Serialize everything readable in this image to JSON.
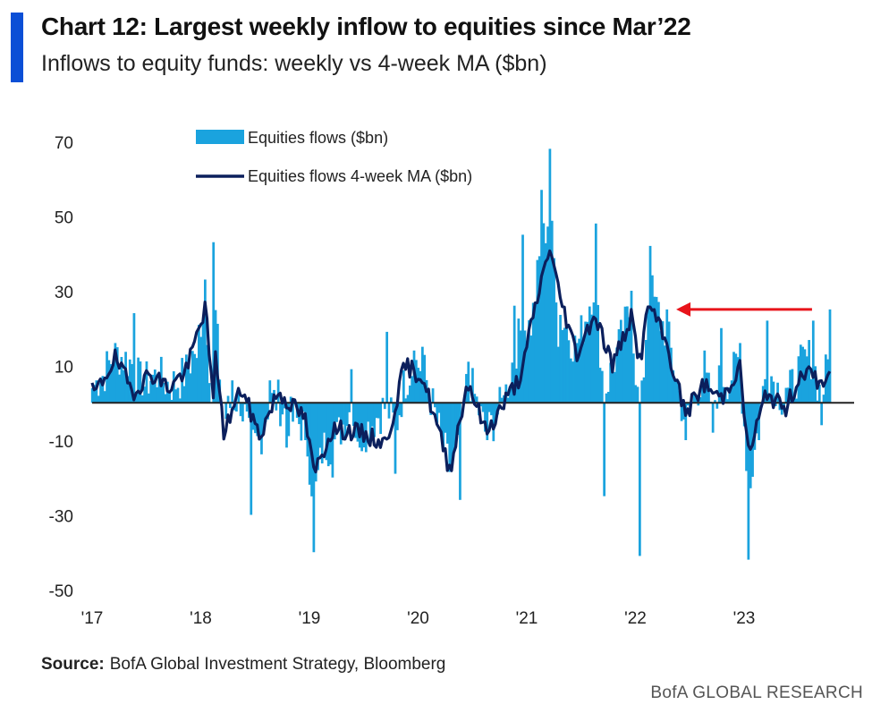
{
  "header": {
    "title": "Chart 12: Largest weekly inflow to equities since Mar’22",
    "subtitle": "Inflows to equity funds: weekly vs 4-week MA ($bn)"
  },
  "footer": {
    "source_label": "Source:",
    "source_text": "BofA Global Investment Strategy, Bloomberg",
    "brand": "BofA GLOBAL RESEARCH"
  },
  "colors": {
    "accent": "#0b4fd6",
    "bars": "#1aa3de",
    "ma_line": "#0b1f5c",
    "arrow": "#e8141b",
    "zero_line": "#222222"
  },
  "chart_data": {
    "type": "bar",
    "title": "",
    "xlabel": "",
    "ylabel": "",
    "ylim": [
      -50,
      75
    ],
    "yticks": [
      70,
      50,
      30,
      10,
      -10,
      -30,
      -50
    ],
    "xticks": [
      "'17",
      "'18",
      "'19",
      "'20",
      "'21",
      "'22",
      "'23"
    ],
    "legend_position": "top-left",
    "annotations": [
      {
        "type": "arrow",
        "direction": "left",
        "from": [
          "2023-08",
          25
        ],
        "to": [
          "2022-05",
          25
        ]
      }
    ],
    "series": [
      {
        "name": "Equities flows ($bn)",
        "type": "bar",
        "frequency": "weekly",
        "start": "2017-01",
        "anchors": [
          [
            "2017-01",
            6
          ],
          [
            "2017-03",
            16
          ],
          [
            "2017-05",
            24
          ],
          [
            "2017-06",
            2
          ],
          [
            "2017-08",
            8
          ],
          [
            "2017-10",
            4
          ],
          [
            "2017-12",
            12
          ],
          [
            "2018-01",
            33
          ],
          [
            "2018-02",
            -31
          ],
          [
            "2018-02",
            43
          ],
          [
            "2018-03",
            0
          ],
          [
            "2018-04",
            6
          ],
          [
            "2018-05",
            -5
          ],
          [
            "2018-06",
            -30
          ],
          [
            "2018-08",
            6
          ],
          [
            "2018-10",
            -12
          ],
          [
            "2018-12",
            -10
          ],
          [
            "2019-01",
            -40
          ],
          [
            "2019-02",
            -8
          ],
          [
            "2019-03",
            -20
          ],
          [
            "2019-05",
            9
          ],
          [
            "2019-06",
            -12
          ],
          [
            "2019-09",
            19
          ],
          [
            "2019-10",
            -19
          ],
          [
            "2019-12",
            14
          ],
          [
            "2020-01",
            15
          ],
          [
            "2020-03",
            -9
          ],
          [
            "2020-05",
            -26
          ],
          [
            "2020-06",
            11
          ],
          [
            "2020-08",
            -10
          ],
          [
            "2020-10",
            2
          ],
          [
            "2020-11",
            26
          ],
          [
            "2020-12",
            45
          ],
          [
            "2021-01",
            18
          ],
          [
            "2021-02",
            57
          ],
          [
            "2021-03",
            68
          ],
          [
            "2021-04",
            15
          ],
          [
            "2021-06",
            16
          ],
          [
            "2021-08",
            48
          ],
          [
            "2021-09",
            -25
          ],
          [
            "2021-10",
            10
          ],
          [
            "2021-12",
            30
          ],
          [
            "2022-01",
            -41
          ],
          [
            "2022-02",
            42
          ],
          [
            "2022-03",
            27
          ],
          [
            "2022-04",
            25
          ],
          [
            "2022-06",
            -10
          ],
          [
            "2022-08",
            14
          ],
          [
            "2022-09",
            -8
          ],
          [
            "2022-10",
            20
          ],
          [
            "2022-11",
            6
          ],
          [
            "2022-12",
            16
          ],
          [
            "2023-01",
            -42
          ],
          [
            "2023-02",
            -10
          ],
          [
            "2023-03",
            22
          ],
          [
            "2023-05",
            4
          ],
          [
            "2023-07",
            15
          ],
          [
            "2023-08",
            22
          ],
          [
            "2023-09",
            -6
          ],
          [
            "2023-10",
            25
          ]
        ]
      },
      {
        "name": "Equities flows 4-week MA ($bn)",
        "type": "line",
        "values": [
          [
            "2017-01",
            3
          ],
          [
            "2017-03",
            12
          ],
          [
            "2017-05",
            3
          ],
          [
            "2017-07",
            8
          ],
          [
            "2017-09",
            4
          ],
          [
            "2017-11",
            9
          ],
          [
            "2018-01",
            26
          ],
          [
            "2018-02",
            -4
          ],
          [
            "2018-02",
            18
          ],
          [
            "2018-03",
            -8
          ],
          [
            "2018-05",
            4
          ],
          [
            "2018-07",
            -9
          ],
          [
            "2018-09",
            3
          ],
          [
            "2018-12",
            -4
          ],
          [
            "2019-01",
            -19
          ],
          [
            "2019-03",
            -7
          ],
          [
            "2019-06",
            -8
          ],
          [
            "2019-09",
            -11
          ],
          [
            "2019-11",
            10
          ],
          [
            "2020-01",
            7
          ],
          [
            "2020-04",
            -18
          ],
          [
            "2020-06",
            6
          ],
          [
            "2020-08",
            -8
          ],
          [
            "2020-10",
            0
          ],
          [
            "2020-12",
            8
          ],
          [
            "2021-01",
            21
          ],
          [
            "2021-03",
            42
          ],
          [
            "2021-04",
            30
          ],
          [
            "2021-06",
            13
          ],
          [
            "2021-08",
            24
          ],
          [
            "2021-10",
            10
          ],
          [
            "2021-12",
            23
          ],
          [
            "2022-01",
            11
          ],
          [
            "2022-02",
            27
          ],
          [
            "2022-04",
            15
          ],
          [
            "2022-06",
            -3
          ],
          [
            "2022-08",
            5
          ],
          [
            "2022-10",
            1
          ],
          [
            "2022-12",
            10
          ],
          [
            "2023-01",
            -14
          ],
          [
            "2023-03",
            3
          ],
          [
            "2023-05",
            -2
          ],
          [
            "2023-07",
            9
          ],
          [
            "2023-09",
            5
          ],
          [
            "2023-10",
            8
          ]
        ]
      }
    ]
  }
}
